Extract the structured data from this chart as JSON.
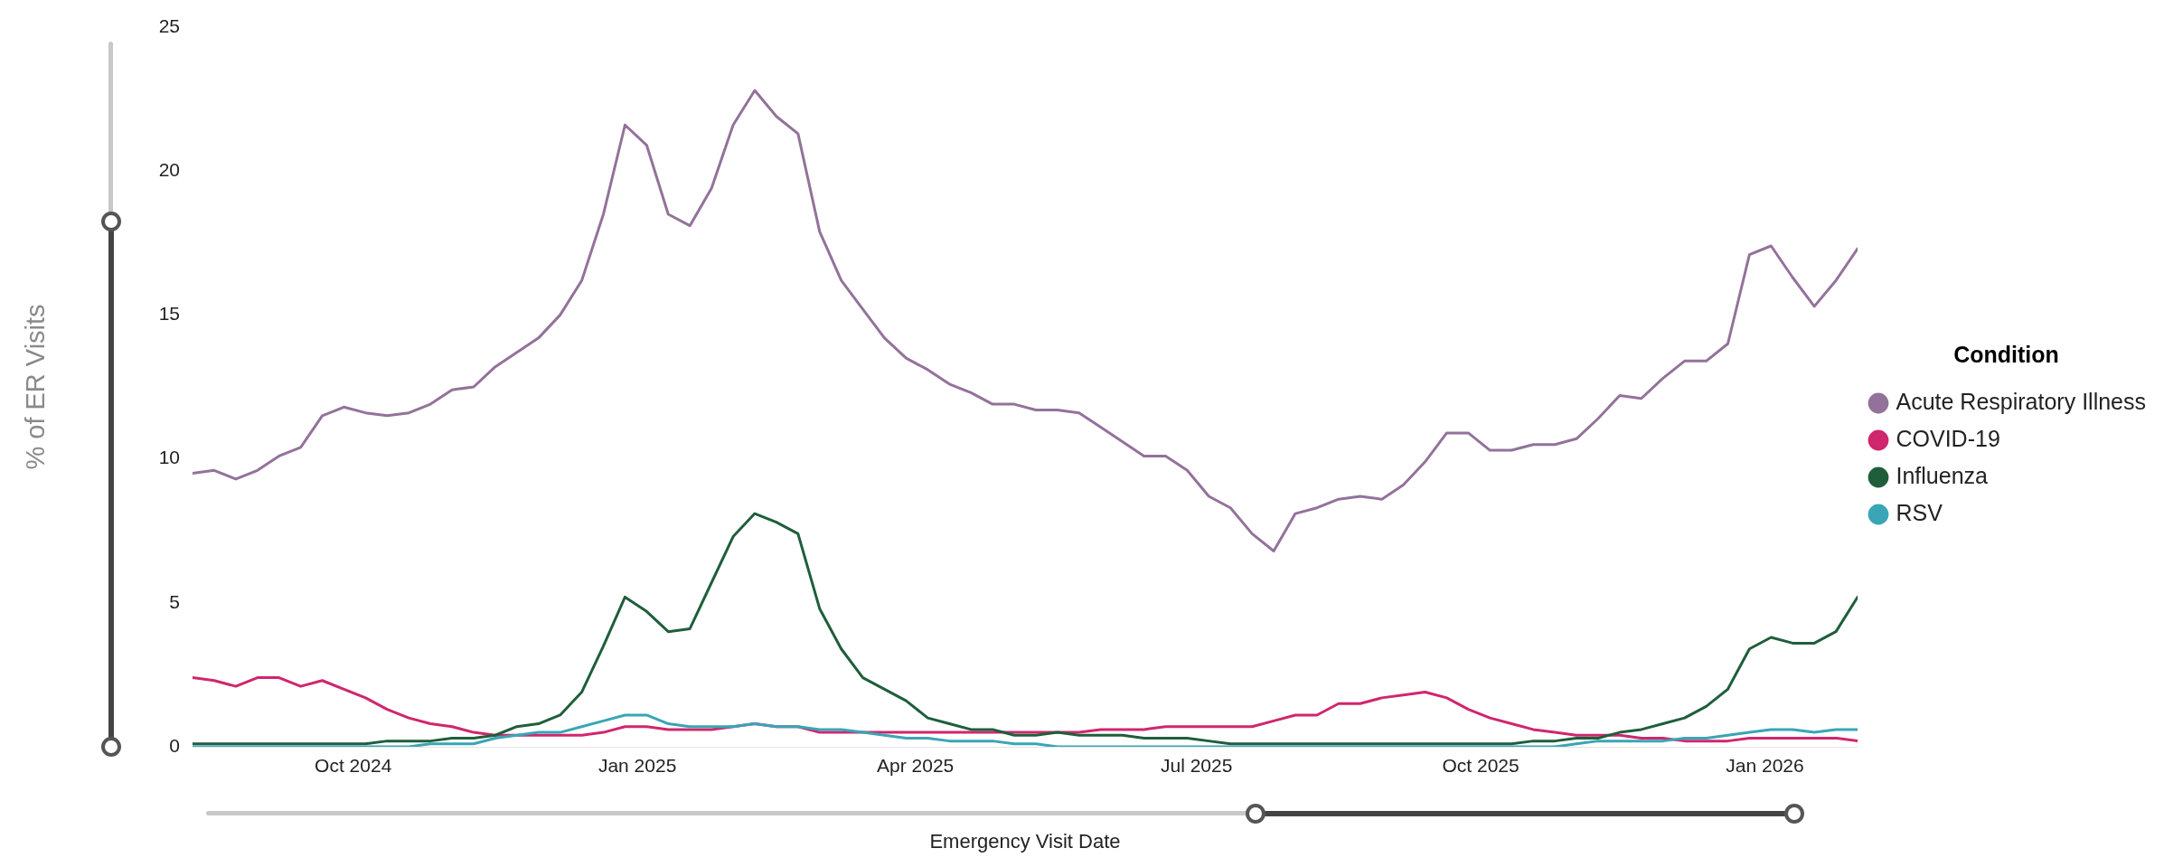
{
  "chart_data": {
    "type": "line",
    "xlabel": "Emergency Visit Date",
    "ylabel": "% of ER Visits",
    "legend_title": "Condition",
    "x": [
      "2024-08-10",
      "2024-08-17",
      "2024-08-24",
      "2024-08-31",
      "2024-09-07",
      "2024-09-14",
      "2024-09-21",
      "2024-09-28",
      "2024-10-05",
      "2024-10-12",
      "2024-10-19",
      "2024-10-26",
      "2024-11-02",
      "2024-11-09",
      "2024-11-16",
      "2024-11-23",
      "2024-11-30",
      "2024-12-07",
      "2024-12-14",
      "2024-12-21",
      "2024-12-28",
      "2025-01-04",
      "2025-01-11",
      "2025-01-18",
      "2025-01-25",
      "2025-02-01",
      "2025-02-08",
      "2025-02-15",
      "2025-02-22",
      "2025-03-01",
      "2025-03-08",
      "2025-03-15",
      "2025-03-22",
      "2025-03-29",
      "2025-04-05",
      "2025-04-12",
      "2025-04-19",
      "2025-04-26",
      "2025-05-03",
      "2025-05-10",
      "2025-05-17",
      "2025-05-24",
      "2025-05-31",
      "2025-06-07",
      "2025-06-14",
      "2025-06-21",
      "2025-06-28",
      "2025-07-05",
      "2025-07-12",
      "2025-07-19",
      "2025-07-26",
      "2025-08-02",
      "2025-08-09",
      "2025-08-16",
      "2025-08-23",
      "2025-08-30",
      "2025-09-06",
      "2025-09-13",
      "2025-09-20",
      "2025-09-27",
      "2025-10-04",
      "2025-10-11",
      "2025-10-18",
      "2025-10-25",
      "2025-11-01",
      "2025-11-08",
      "2025-11-15",
      "2025-11-22",
      "2025-11-29",
      "2025-12-06",
      "2025-12-13",
      "2025-12-20",
      "2025-12-27",
      "2026-01-03",
      "2026-01-10",
      "2026-01-17",
      "2026-01-24",
      "2026-01-31"
    ],
    "series": [
      {
        "name": "Acute Respiratory Illness",
        "color": "#93729a",
        "values": [
          9.5,
          9.6,
          9.3,
          9.6,
          10.1,
          10.4,
          11.5,
          11.8,
          11.6,
          11.5,
          11.6,
          11.9,
          12.4,
          12.5,
          13.2,
          13.7,
          14.2,
          15.0,
          16.2,
          18.5,
          21.6,
          20.9,
          18.5,
          18.1,
          19.4,
          21.6,
          22.8,
          21.9,
          21.3,
          17.9,
          16.2,
          15.2,
          14.2,
          13.5,
          13.1,
          12.6,
          12.3,
          11.9,
          11.9,
          11.7,
          11.7,
          11.6,
          11.1,
          10.6,
          10.1,
          10.1,
          9.6,
          8.7,
          8.3,
          7.4,
          6.8,
          8.1,
          8.3,
          8.6,
          8.7,
          8.6,
          9.1,
          9.9,
          10.9,
          10.9,
          10.3,
          10.3,
          10.5,
          10.5,
          10.7,
          11.4,
          12.2,
          12.1,
          12.8,
          13.4,
          13.4,
          14.0,
          17.1,
          17.4,
          16.3,
          15.3,
          16.2,
          17.3
        ]
      },
      {
        "name": "COVID-19",
        "color": "#d0266e",
        "values": [
          2.4,
          2.3,
          2.1,
          2.4,
          2.4,
          2.1,
          2.3,
          2.0,
          1.7,
          1.3,
          1.0,
          0.8,
          0.7,
          0.5,
          0.4,
          0.4,
          0.4,
          0.4,
          0.4,
          0.5,
          0.7,
          0.7,
          0.6,
          0.6,
          0.6,
          0.7,
          0.8,
          0.7,
          0.7,
          0.5,
          0.5,
          0.5,
          0.5,
          0.5,
          0.5,
          0.5,
          0.5,
          0.5,
          0.5,
          0.5,
          0.5,
          0.5,
          0.6,
          0.6,
          0.6,
          0.7,
          0.7,
          0.7,
          0.7,
          0.7,
          0.9,
          1.1,
          1.1,
          1.5,
          1.5,
          1.7,
          1.8,
          1.9,
          1.7,
          1.3,
          1.0,
          0.8,
          0.6,
          0.5,
          0.4,
          0.4,
          0.4,
          0.3,
          0.3,
          0.2,
          0.2,
          0.2,
          0.3,
          0.3,
          0.3,
          0.3,
          0.3,
          0.2
        ]
      },
      {
        "name": "Influenza",
        "color": "#1f5e3b",
        "values": [
          0.1,
          0.1,
          0.1,
          0.1,
          0.1,
          0.1,
          0.1,
          0.1,
          0.1,
          0.2,
          0.2,
          0.2,
          0.3,
          0.3,
          0.4,
          0.7,
          0.8,
          1.1,
          1.9,
          3.5,
          5.2,
          4.7,
          4.0,
          4.1,
          5.7,
          7.3,
          8.1,
          7.8,
          7.4,
          4.8,
          3.4,
          2.4,
          2.0,
          1.6,
          1.0,
          0.8,
          0.6,
          0.6,
          0.4,
          0.4,
          0.5,
          0.4,
          0.4,
          0.4,
          0.3,
          0.3,
          0.3,
          0.2,
          0.1,
          0.1,
          0.1,
          0.1,
          0.1,
          0.1,
          0.1,
          0.1,
          0.1,
          0.1,
          0.1,
          0.1,
          0.1,
          0.1,
          0.2,
          0.2,
          0.3,
          0.3,
          0.5,
          0.6,
          0.8,
          1.0,
          1.4,
          2.0,
          3.4,
          3.8,
          3.6,
          3.6,
          4.0,
          5.2
        ]
      },
      {
        "name": "RSV",
        "color": "#3aa5b5",
        "values": [
          0.0,
          0.0,
          0.0,
          0.0,
          0.0,
          0.0,
          0.0,
          0.0,
          0.0,
          0.0,
          0.0,
          0.1,
          0.1,
          0.1,
          0.3,
          0.4,
          0.5,
          0.5,
          0.7,
          0.9,
          1.1,
          1.1,
          0.8,
          0.7,
          0.7,
          0.7,
          0.8,
          0.7,
          0.7,
          0.6,
          0.6,
          0.5,
          0.4,
          0.3,
          0.3,
          0.2,
          0.2,
          0.2,
          0.1,
          0.1,
          0.0,
          0.0,
          0.0,
          0.0,
          0.0,
          0.0,
          0.0,
          0.0,
          0.0,
          0.0,
          0.0,
          0.0,
          0.0,
          0.0,
          0.0,
          0.0,
          0.0,
          0.0,
          0.0,
          0.0,
          0.0,
          0.0,
          0.0,
          0.0,
          0.1,
          0.2,
          0.2,
          0.2,
          0.2,
          0.3,
          0.3,
          0.4,
          0.5,
          0.6,
          0.6,
          0.5,
          0.6,
          0.6
        ]
      }
    ],
    "xlim": [
      "2024-08-10",
      "2026-01-31"
    ],
    "xticks": [
      {
        "value": "2024-10-01",
        "label": "Oct 2024"
      },
      {
        "value": "2025-01-01",
        "label": "Jan 2025"
      },
      {
        "value": "2025-04-01",
        "label": "Apr 2025"
      },
      {
        "value": "2025-07-01",
        "label": "Jul 2025"
      },
      {
        "value": "2025-10-01",
        "label": "Oct 2025"
      },
      {
        "value": "2026-01-01",
        "label": "Jan 2026"
      }
    ],
    "ylim": [
      0,
      25
    ],
    "yticks": [
      0,
      5,
      10,
      15,
      20,
      25
    ],
    "grid": false,
    "legend": "right",
    "marker": "none",
    "line_style": "solid"
  }
}
